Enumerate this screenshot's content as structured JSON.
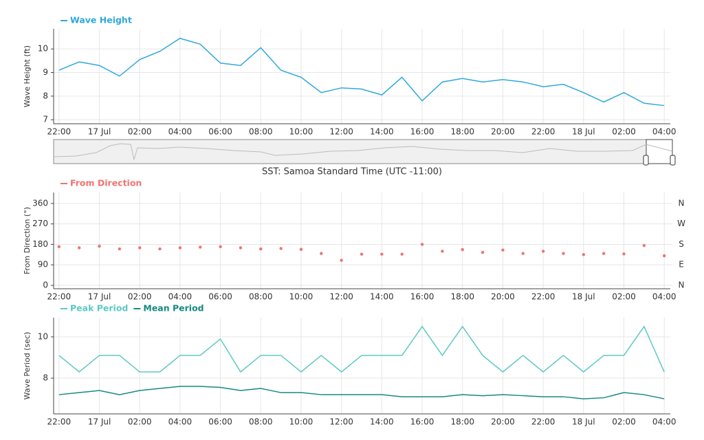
{
  "chart_data": [
    {
      "type": "line",
      "ylabel": "Wave Height (ft)",
      "x": [
        "16 Jul 22:00",
        "16 Jul 23:00",
        "17 Jul 00:00",
        "17 Jul 01:00",
        "17 Jul 02:00",
        "17 Jul 03:00",
        "17 Jul 04:00",
        "17 Jul 05:00",
        "17 Jul 06:00",
        "17 Jul 07:00",
        "17 Jul 08:00",
        "17 Jul 09:00",
        "17 Jul 10:00",
        "17 Jul 11:00",
        "17 Jul 12:00",
        "17 Jul 13:00",
        "17 Jul 14:00",
        "17 Jul 15:00",
        "17 Jul 16:00",
        "17 Jul 17:00",
        "17 Jul 18:00",
        "17 Jul 19:00",
        "17 Jul 20:00",
        "17 Jul 21:00",
        "17 Jul 22:00",
        "17 Jul 23:00",
        "18 Jul 00:00",
        "18 Jul 01:00",
        "18 Jul 02:00",
        "18 Jul 03:00",
        "18 Jul 04:00"
      ],
      "series": [
        {
          "name": "Wave Height",
          "color": "#2ea8dc",
          "values": [
            9.1,
            9.45,
            9.3,
            8.85,
            9.55,
            9.9,
            10.45,
            10.2,
            9.4,
            9.3,
            10.05,
            9.1,
            8.8,
            8.15,
            8.35,
            8.3,
            8.05,
            8.8,
            7.8,
            8.6,
            8.75,
            8.6,
            8.7,
            8.6,
            8.4,
            8.5,
            8.15,
            7.75,
            8.15,
            7.7,
            7.6
          ]
        }
      ],
      "xlim": [
        "16 Jul 21:44",
        "18 Jul 04:18"
      ],
      "xticks": [
        {
          "value": "16 Jul 22:00",
          "label": "22:00"
        },
        {
          "value": "17 Jul 00:00",
          "label": "17 Jul"
        },
        {
          "value": "17 Jul 02:00",
          "label": "02:00"
        },
        {
          "value": "17 Jul 04:00",
          "label": "04:00"
        },
        {
          "value": "17 Jul 06:00",
          "label": "06:00"
        },
        {
          "value": "17 Jul 08:00",
          "label": "08:00"
        },
        {
          "value": "17 Jul 10:00",
          "label": "10:00"
        },
        {
          "value": "17 Jul 12:00",
          "label": "12:00"
        },
        {
          "value": "17 Jul 14:00",
          "label": "14:00"
        },
        {
          "value": "17 Jul 16:00",
          "label": "16:00"
        },
        {
          "value": "17 Jul 18:00",
          "label": "18:00"
        },
        {
          "value": "17 Jul 20:00",
          "label": "20:00"
        },
        {
          "value": "17 Jul 22:00",
          "label": "22:00"
        },
        {
          "value": "18 Jul 00:00",
          "label": "18 Jul"
        },
        {
          "value": "18 Jul 02:00",
          "label": "02:00"
        },
        {
          "value": "18 Jul 04:00",
          "label": "04:00"
        }
      ],
      "ylim": [
        6.83,
        10.85
      ],
      "yticks": [
        7,
        8,
        9,
        10
      ],
      "grid": true
    },
    {
      "type": "scatter",
      "ylabel": "From Direction (°)",
      "x": [
        "16 Jul 22:00",
        "16 Jul 23:00",
        "17 Jul 00:00",
        "17 Jul 01:00",
        "17 Jul 02:00",
        "17 Jul 03:00",
        "17 Jul 04:00",
        "17 Jul 05:00",
        "17 Jul 06:00",
        "17 Jul 07:00",
        "17 Jul 08:00",
        "17 Jul 09:00",
        "17 Jul 10:00",
        "17 Jul 11:00",
        "17 Jul 12:00",
        "17 Jul 13:00",
        "17 Jul 14:00",
        "17 Jul 15:00",
        "17 Jul 16:00",
        "17 Jul 17:00",
        "17 Jul 18:00",
        "17 Jul 19:00",
        "17 Jul 20:00",
        "17 Jul 21:00",
        "17 Jul 22:00",
        "17 Jul 23:00",
        "18 Jul 00:00",
        "18 Jul 01:00",
        "18 Jul 02:00",
        "18 Jul 03:00",
        "18 Jul 04:00"
      ],
      "series": [
        {
          "name": "From Direction",
          "color": "#f07272",
          "values": [
            170,
            165,
            172,
            160,
            165,
            160,
            165,
            168,
            170,
            165,
            160,
            162,
            158,
            140,
            110,
            137,
            137,
            137,
            180,
            150,
            157,
            145,
            155,
            140,
            150,
            140,
            135,
            140,
            138,
            175,
            130
          ]
        }
      ],
      "xlim": [
        "16 Jul 21:44",
        "18 Jul 04:18"
      ],
      "xticks": [
        {
          "value": "16 Jul 22:00",
          "label": "22:00"
        },
        {
          "value": "17 Jul 00:00",
          "label": "17 Jul"
        },
        {
          "value": "17 Jul 02:00",
          "label": "02:00"
        },
        {
          "value": "17 Jul 04:00",
          "label": "04:00"
        },
        {
          "value": "17 Jul 06:00",
          "label": "06:00"
        },
        {
          "value": "17 Jul 08:00",
          "label": "08:00"
        },
        {
          "value": "17 Jul 10:00",
          "label": "10:00"
        },
        {
          "value": "17 Jul 12:00",
          "label": "12:00"
        },
        {
          "value": "17 Jul 14:00",
          "label": "14:00"
        },
        {
          "value": "17 Jul 16:00",
          "label": "16:00"
        },
        {
          "value": "17 Jul 18:00",
          "label": "18:00"
        },
        {
          "value": "17 Jul 20:00",
          "label": "20:00"
        },
        {
          "value": "17 Jul 22:00",
          "label": "22:00"
        },
        {
          "value": "18 Jul 00:00",
          "label": "18 Jul"
        },
        {
          "value": "18 Jul 02:00",
          "label": "02:00"
        },
        {
          "value": "18 Jul 04:00",
          "label": "04:00"
        }
      ],
      "ylim": [
        -15,
        408
      ],
      "yticks": [
        0,
        90,
        180,
        270,
        360
      ],
      "y2lim": [
        -15,
        408
      ],
      "y2ticks": [
        {
          "value": 0,
          "label": "N"
        },
        {
          "value": 90,
          "label": "E"
        },
        {
          "value": 180,
          "label": "S"
        },
        {
          "value": 270,
          "label": "W"
        },
        {
          "value": 360,
          "label": "N"
        }
      ],
      "grid": true
    },
    {
      "type": "line",
      "ylabel": "Wave Period (sec)",
      "x": [
        "16 Jul 22:00",
        "16 Jul 23:00",
        "17 Jul 00:00",
        "17 Jul 01:00",
        "17 Jul 02:00",
        "17 Jul 03:00",
        "17 Jul 04:00",
        "17 Jul 05:00",
        "17 Jul 06:00",
        "17 Jul 07:00",
        "17 Jul 08:00",
        "17 Jul 09:00",
        "17 Jul 10:00",
        "17 Jul 11:00",
        "17 Jul 12:00",
        "17 Jul 13:00",
        "17 Jul 14:00",
        "17 Jul 15:00",
        "17 Jul 16:00",
        "17 Jul 17:00",
        "17 Jul 18:00",
        "17 Jul 19:00",
        "17 Jul 20:00",
        "17 Jul 21:00",
        "17 Jul 22:00",
        "17 Jul 23:00",
        "18 Jul 00:00",
        "18 Jul 01:00",
        "18 Jul 02:00",
        "18 Jul 03:00",
        "18 Jul 04:00"
      ],
      "series": [
        {
          "name": "Peak Period",
          "color": "#5cc8c4",
          "values": [
            9.1,
            8.3,
            9.1,
            9.1,
            8.3,
            8.3,
            9.1,
            9.1,
            9.9,
            8.3,
            9.1,
            9.1,
            8.3,
            9.1,
            8.3,
            9.1,
            9.1,
            9.1,
            10.5,
            9.1,
            10.5,
            9.1,
            8.3,
            9.1,
            8.3,
            9.1,
            8.3,
            9.1,
            9.1,
            10.5,
            8.3
          ]
        },
        {
          "name": "Mean Period",
          "color": "#138a80",
          "values": [
            7.2,
            7.3,
            7.4,
            7.2,
            7.4,
            7.5,
            7.6,
            7.6,
            7.55,
            7.4,
            7.5,
            7.3,
            7.3,
            7.2,
            7.2,
            7.2,
            7.2,
            7.1,
            7.1,
            7.1,
            7.2,
            7.15,
            7.2,
            7.15,
            7.1,
            7.1,
            7.0,
            7.05,
            7.3,
            7.2,
            7.0
          ]
        }
      ],
      "xlim": [
        "16 Jul 21:44",
        "18 Jul 04:18"
      ],
      "xticks": [
        {
          "value": "16 Jul 22:00",
          "label": "22:00"
        },
        {
          "value": "17 Jul 00:00",
          "label": "17 Jul"
        },
        {
          "value": "17 Jul 02:00",
          "label": "02:00"
        },
        {
          "value": "17 Jul 04:00",
          "label": "04:00"
        },
        {
          "value": "17 Jul 06:00",
          "label": "06:00"
        },
        {
          "value": "17 Jul 08:00",
          "label": "08:00"
        },
        {
          "value": "17 Jul 10:00",
          "label": "10:00"
        },
        {
          "value": "17 Jul 12:00",
          "label": "12:00"
        },
        {
          "value": "17 Jul 14:00",
          "label": "14:00"
        },
        {
          "value": "17 Jul 16:00",
          "label": "16:00"
        },
        {
          "value": "17 Jul 18:00",
          "label": "18:00"
        },
        {
          "value": "17 Jul 20:00",
          "label": "20:00"
        },
        {
          "value": "17 Jul 22:00",
          "label": "22:00"
        },
        {
          "value": "18 Jul 00:00",
          "label": "18 Jul"
        },
        {
          "value": "18 Jul 02:00",
          "label": "02:00"
        },
        {
          "value": "18 Jul 04:00",
          "label": "04:00"
        }
      ],
      "ylim": [
        6.27,
        10.93
      ],
      "yticks": [
        8,
        10
      ],
      "grid": true
    }
  ],
  "range_selector": {
    "timezone_label": "SST: Samoa Standard Time (UTC -11:00)"
  }
}
